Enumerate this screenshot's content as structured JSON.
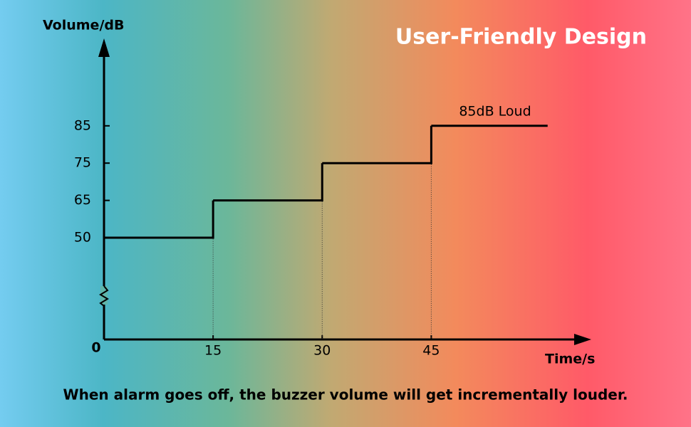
{
  "chart_data": {
    "type": "step",
    "title": "User-Friendly Design",
    "y_label": "Volume/dB",
    "x_label": "Time/s",
    "annotation": "85dB Loud",
    "caption": "When alarm goes off, the buzzer volume will get incrementally louder.",
    "x": [
      0,
      15,
      30,
      45,
      61
    ],
    "values": [
      50,
      65,
      75,
      85,
      85
    ],
    "color": "#000000",
    "xlim": [
      0,
      67
    ],
    "ylim": [
      0,
      100
    ],
    "xticks": [
      0,
      15,
      30,
      45
    ],
    "yticks": [
      50,
      65,
      75,
      85
    ]
  }
}
